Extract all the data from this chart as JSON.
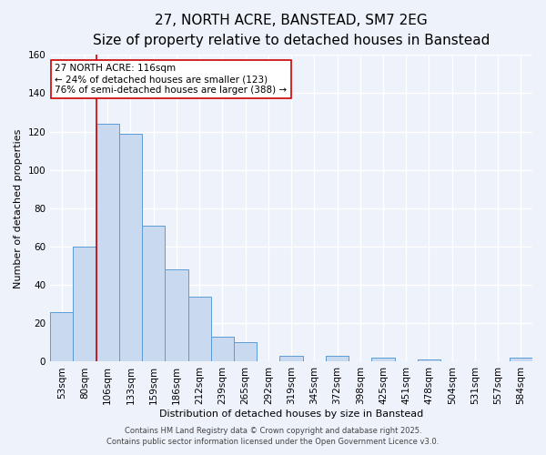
{
  "title": "27, NORTH ACRE, BANSTEAD, SM7 2EG",
  "subtitle": "Size of property relative to detached houses in Banstead",
  "xlabel": "Distribution of detached houses by size in Banstead",
  "ylabel": "Number of detached properties",
  "categories": [
    "53sqm",
    "80sqm",
    "106sqm",
    "133sqm",
    "159sqm",
    "186sqm",
    "212sqm",
    "239sqm",
    "265sqm",
    "292sqm",
    "319sqm",
    "345sqm",
    "372sqm",
    "398sqm",
    "425sqm",
    "451sqm",
    "478sqm",
    "504sqm",
    "531sqm",
    "557sqm",
    "584sqm"
  ],
  "values": [
    26,
    60,
    124,
    119,
    71,
    48,
    34,
    13,
    10,
    0,
    3,
    0,
    3,
    0,
    2,
    0,
    1,
    0,
    0,
    0,
    2
  ],
  "bar_color": "#c8d9f0",
  "bar_edge_color": "#5b9bd5",
  "bar_width": 1.0,
  "vline_x_index": 2,
  "vline_color": "#cc0000",
  "annotation_title": "27 NORTH ACRE: 116sqm",
  "annotation_line1": "← 24% of detached houses are smaller (123)",
  "annotation_line2": "76% of semi-detached houses are larger (388) →",
  "ylim": [
    0,
    160
  ],
  "yticks": [
    0,
    20,
    40,
    60,
    80,
    100,
    120,
    140,
    160
  ],
  "footer1": "Contains HM Land Registry data © Crown copyright and database right 2025.",
  "footer2": "Contains public sector information licensed under the Open Government Licence v3.0.",
  "bg_color": "#eef2fb",
  "plot_bg_color": "#eef2fb",
  "grid_color": "#ffffff",
  "title_fontsize": 11,
  "subtitle_fontsize": 9,
  "axis_label_fontsize": 8,
  "tick_fontsize": 7.5,
  "annotation_fontsize": 7.5,
  "footer_fontsize": 6
}
